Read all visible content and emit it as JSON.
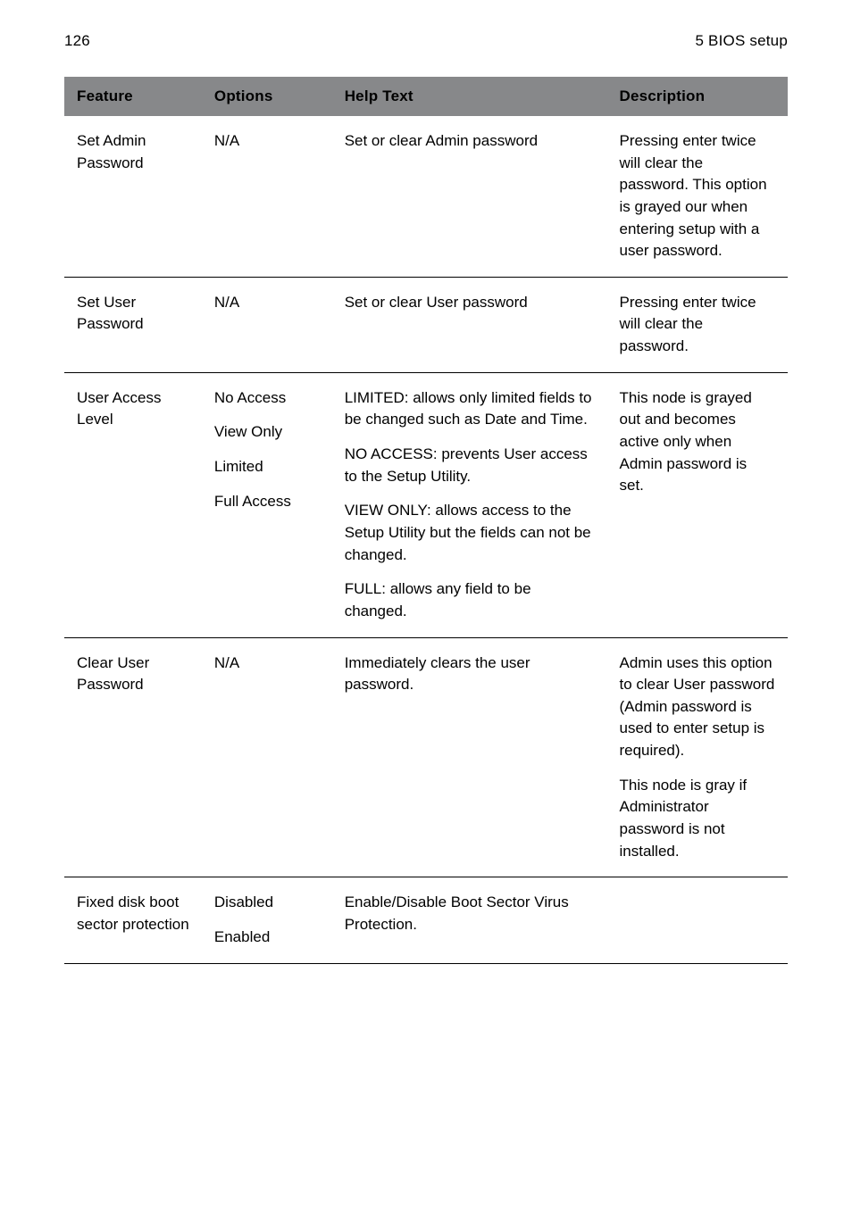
{
  "header": {
    "page_number": "126",
    "chapter": "5 BIOS setup"
  },
  "table": {
    "columns": {
      "feature": "Feature",
      "options": "Options",
      "help": "Help Text",
      "description": "Description"
    },
    "rows": [
      {
        "feature": "Set Admin Password",
        "options": "N/A",
        "help": "Set or clear Admin pass­word",
        "description": "Pressing enter twice will clear the password. This option is grayed our when entering setup with a user pass­word."
      },
      {
        "feature": "Set User Password",
        "options": "N/A",
        "help": "Set or clear User password",
        "description": "Pressing enter twice will clear the password."
      },
      {
        "feature": "User Access Level",
        "options_lines": [
          "No Access",
          "View Only",
          "Limited",
          "Full Access"
        ],
        "help_paras": [
          "LIMITED: allows only lim­ited fields to be changed such as Date and Time.",
          "NO ACCESS: prevents User access to the Setup Utility.",
          "VIEW ONLY: allows access to the Setup Utility but the fields can not be changed.",
          "FULL: allows any field to be changed."
        ],
        "description": "This node is grayed out and becomes active only when Admin password is set."
      },
      {
        "feature": "Clear User Password",
        "options": "N/A",
        "help": "Immediately clears the user password.",
        "description_paras": [
          "Admin uses this option to clear User password (Admin password is used to enter setup is required).",
          "This node is gray if Administrator password is not installed."
        ]
      },
      {
        "feature": "Fixed disk boot sector protection",
        "options_lines": [
          "Disabled",
          "Enabled"
        ],
        "help": "Enable/Disable Boot Sec­tor Virus Protection.",
        "description": ""
      }
    ]
  }
}
